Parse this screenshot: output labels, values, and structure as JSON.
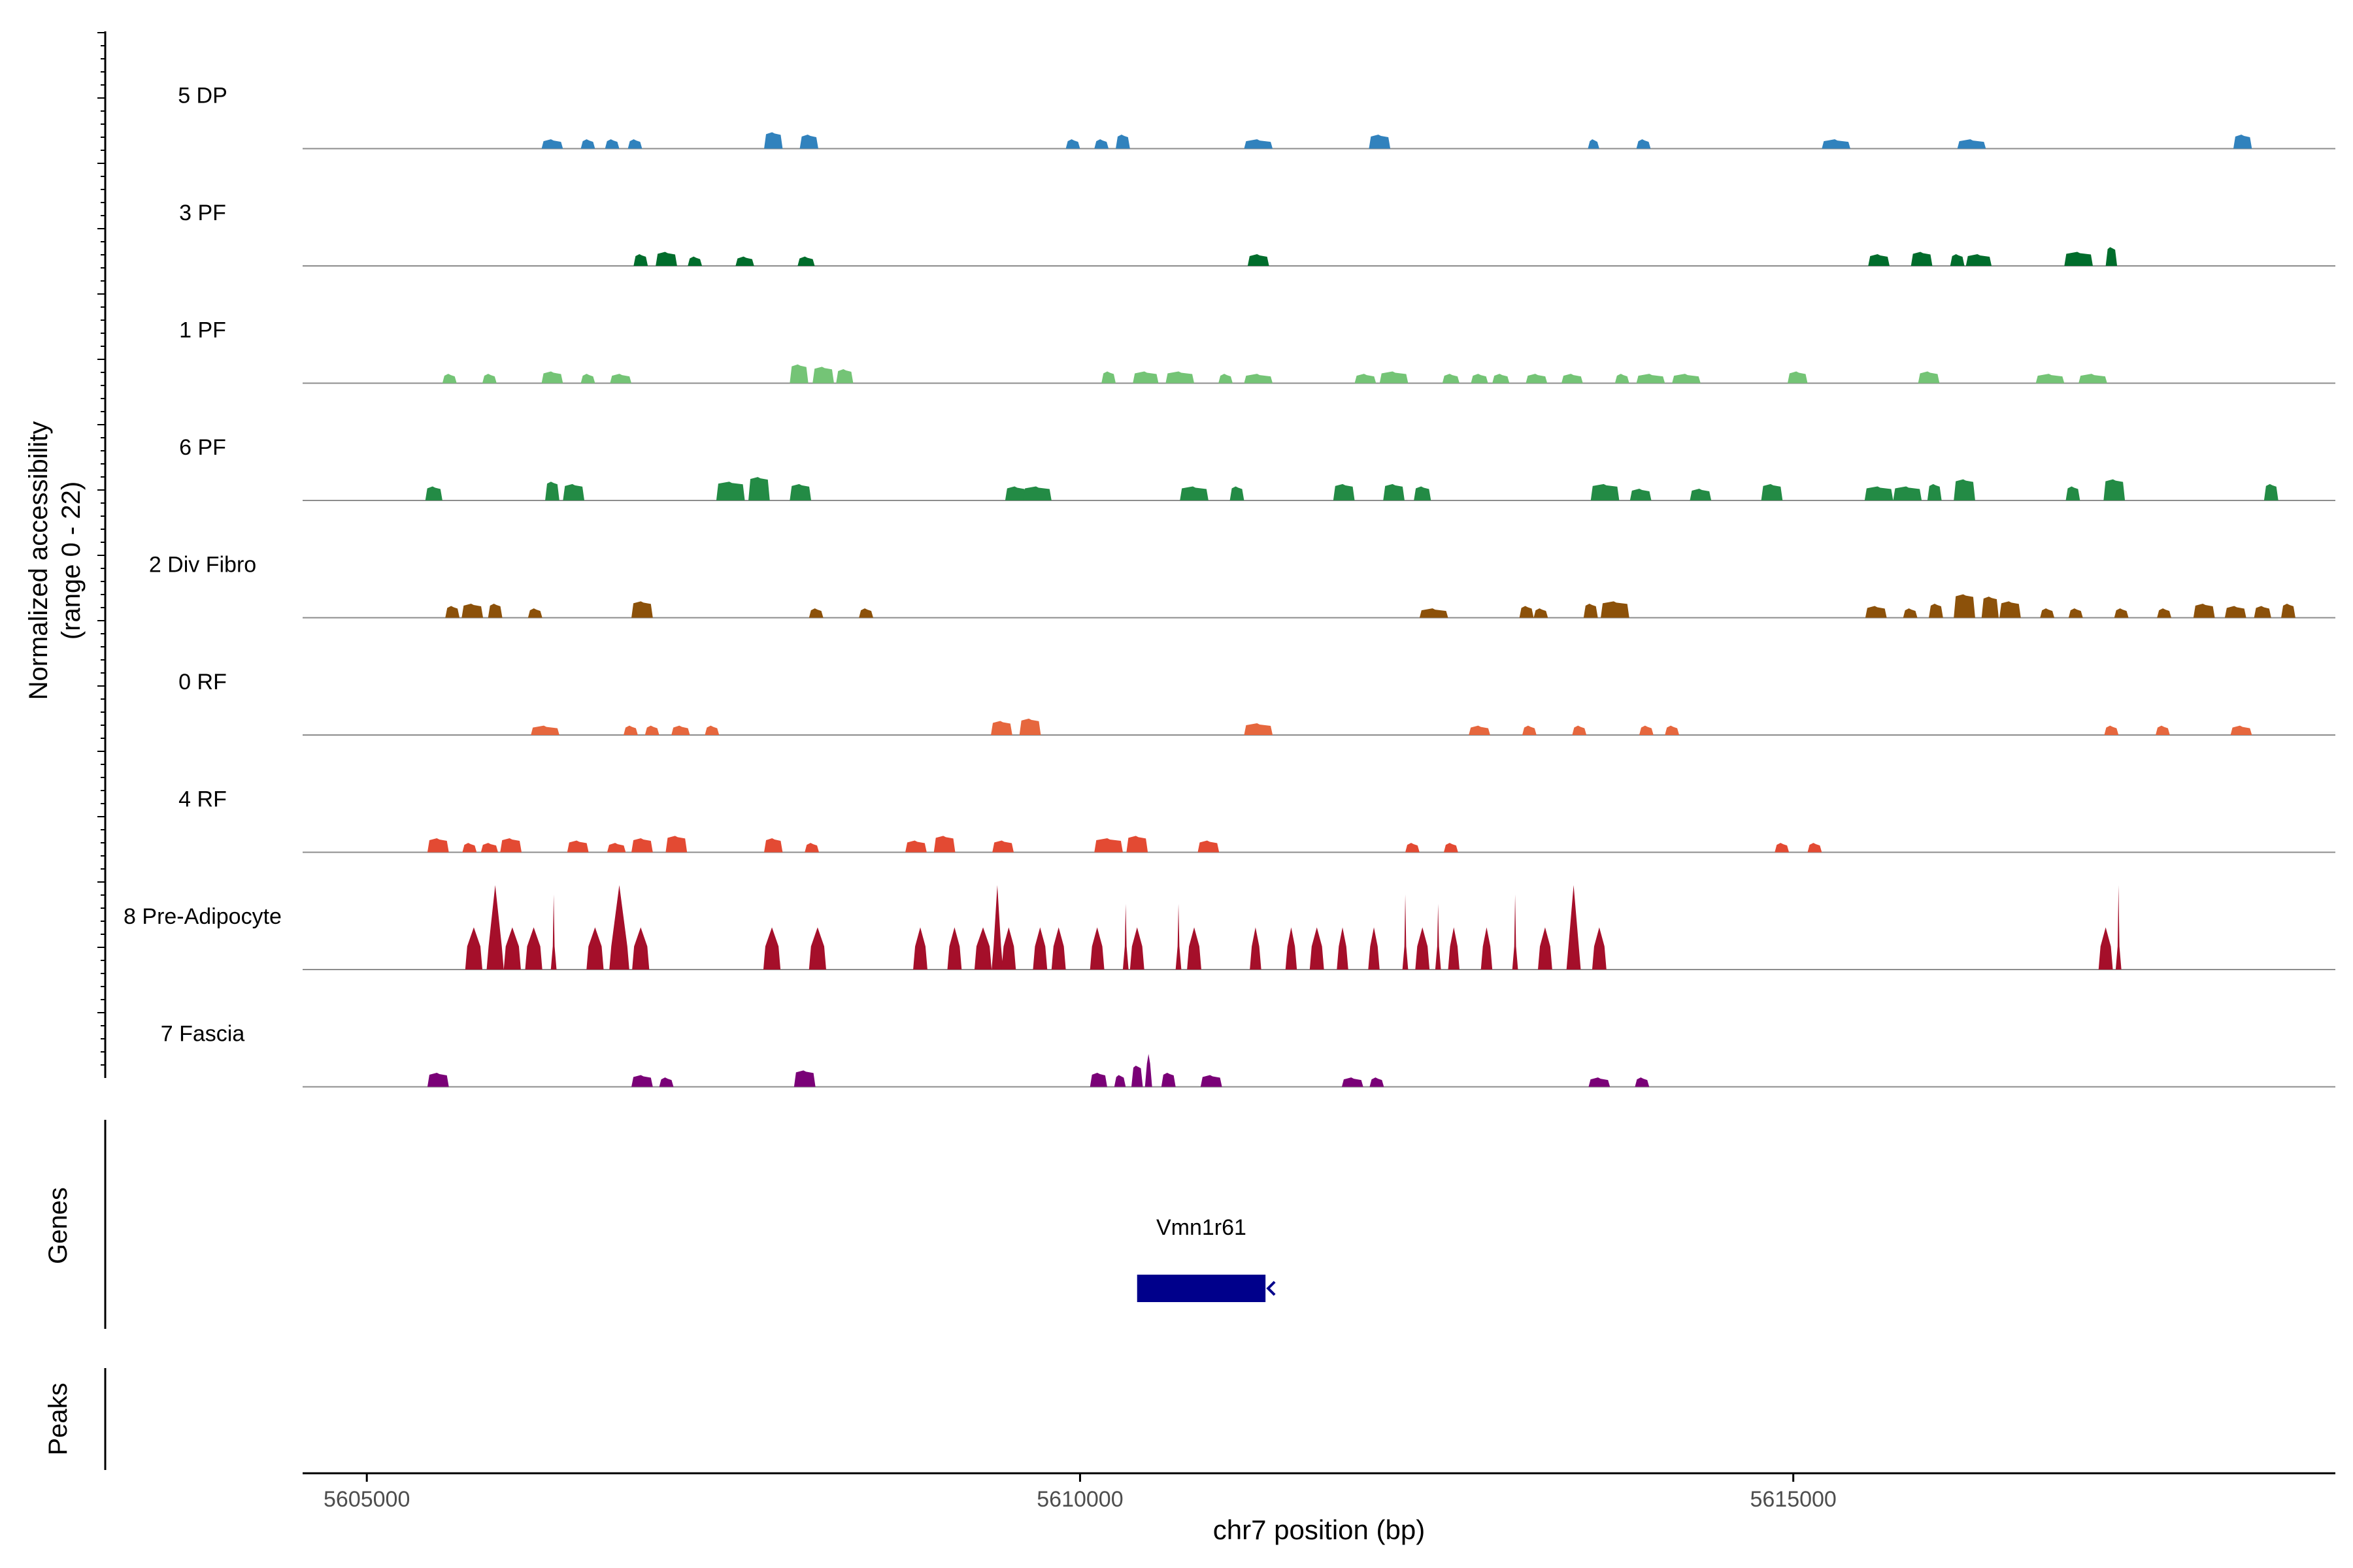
{
  "chart_data": {
    "type": "area",
    "ylabel_line1": "Normalized accessibility",
    "ylabel_line2": "(range 0 - 22)",
    "xlabel": "chr7 position (bp)",
    "xlim": [
      5604550,
      5618800
    ],
    "ylim": [
      0,
      22
    ],
    "x_ticks": [
      5605000,
      5610000,
      5615000
    ],
    "x_tick_labels": [
      "5605000",
      "5610000",
      "5615000"
    ],
    "genes_label": "Genes",
    "peaks_label": "Peaks",
    "genes": [
      {
        "name": "Vmn1r61",
        "start": 5610400,
        "end": 5611300,
        "strand": "-",
        "color": "#00008B"
      }
    ],
    "tracks": [
      {
        "name": "5 DP",
        "color": "#3182BD",
        "peaks": [
          [
            5606300,
            150,
            2
          ],
          [
            5606550,
            100,
            2
          ],
          [
            5606720,
            100,
            2
          ],
          [
            5606880,
            100,
            2
          ],
          [
            5607850,
            130,
            3.5
          ],
          [
            5608100,
            130,
            3
          ],
          [
            5609950,
            100,
            2
          ],
          [
            5610150,
            100,
            2
          ],
          [
            5610300,
            100,
            3
          ],
          [
            5611250,
            200,
            2
          ],
          [
            5612100,
            150,
            3
          ],
          [
            5613600,
            80,
            2
          ],
          [
            5613950,
            100,
            2
          ],
          [
            5615300,
            200,
            2
          ],
          [
            5616250,
            200,
            2
          ],
          [
            5618150,
            130,
            3
          ]
        ]
      },
      {
        "name": "3 PF",
        "color": "#006D2C",
        "peaks": [
          [
            5606920,
            100,
            2.5
          ],
          [
            5607100,
            150,
            3
          ],
          [
            5607300,
            100,
            2
          ],
          [
            5607650,
            130,
            2
          ],
          [
            5608080,
            120,
            2
          ],
          [
            5611250,
            150,
            2.5
          ],
          [
            5615600,
            150,
            2.5
          ],
          [
            5615900,
            150,
            3
          ],
          [
            5616150,
            100,
            2.5
          ],
          [
            5616300,
            180,
            2.5
          ],
          [
            5617000,
            200,
            3
          ],
          [
            5617230,
            80,
            4
          ]
        ]
      },
      {
        "name": "1 PF",
        "color": "#74C476",
        "peaks": [
          [
            5605580,
            100,
            2
          ],
          [
            5605860,
            100,
            2
          ],
          [
            5606300,
            150,
            2.5
          ],
          [
            5606550,
            100,
            2
          ],
          [
            5606780,
            150,
            2
          ],
          [
            5608030,
            130,
            4
          ],
          [
            5608200,
            150,
            3.5
          ],
          [
            5608350,
            120,
            3
          ],
          [
            5610200,
            100,
            2.5
          ],
          [
            5610460,
            180,
            2.5
          ],
          [
            5610700,
            200,
            2.5
          ],
          [
            5611020,
            100,
            2
          ],
          [
            5611250,
            200,
            2
          ],
          [
            5612000,
            150,
            2
          ],
          [
            5612200,
            200,
            2.5
          ],
          [
            5612600,
            120,
            2
          ],
          [
            5612800,
            120,
            2
          ],
          [
            5612950,
            120,
            2
          ],
          [
            5613200,
            150,
            2
          ],
          [
            5613450,
            150,
            2
          ],
          [
            5613800,
            100,
            2
          ],
          [
            5614000,
            200,
            2
          ],
          [
            5614250,
            200,
            2
          ],
          [
            5615030,
            140,
            2.5
          ],
          [
            5615950,
            150,
            2.5
          ],
          [
            5616800,
            200,
            2
          ],
          [
            5617100,
            200,
            2
          ]
        ]
      },
      {
        "name": "6 PF",
        "color": "#238B45",
        "peaks": [
          [
            5605470,
            120,
            3
          ],
          [
            5606300,
            100,
            4
          ],
          [
            5606450,
            150,
            3.5
          ],
          [
            5607550,
            200,
            4
          ],
          [
            5607750,
            150,
            5
          ],
          [
            5608040,
            150,
            3.5
          ],
          [
            5609550,
            150,
            3
          ],
          [
            5609700,
            200,
            3
          ],
          [
            5610800,
            200,
            3
          ],
          [
            5611100,
            100,
            3
          ],
          [
            5611850,
            150,
            3.5
          ],
          [
            5612200,
            150,
            3.5
          ],
          [
            5612400,
            120,
            3
          ],
          [
            5613680,
            200,
            3.5
          ],
          [
            5613930,
            150,
            2.5
          ],
          [
            5614350,
            150,
            2.5
          ],
          [
            5614850,
            150,
            3.5
          ],
          [
            5615600,
            200,
            3
          ],
          [
            5615800,
            200,
            3
          ],
          [
            5615990,
            100,
            3.5
          ],
          [
            5616200,
            150,
            4.5
          ],
          [
            5616960,
            100,
            3
          ],
          [
            5617250,
            150,
            4.5
          ],
          [
            5618350,
            100,
            3.5
          ]
        ]
      },
      {
        "name": "2 Div Fibro",
        "color": "#8C510A",
        "peaks": [
          [
            5605600,
            100,
            2.5
          ],
          [
            5605740,
            150,
            3
          ],
          [
            5605900,
            100,
            3
          ],
          [
            5606180,
            100,
            2
          ],
          [
            5606930,
            150,
            3.5
          ],
          [
            5608150,
            100,
            2
          ],
          [
            5608500,
            100,
            2
          ],
          [
            5612480,
            200,
            2
          ],
          [
            5613130,
            100,
            2.5
          ],
          [
            5613230,
            100,
            2
          ],
          [
            5613580,
            100,
            3
          ],
          [
            5613750,
            200,
            3.5
          ],
          [
            5615580,
            150,
            2.5
          ],
          [
            5615820,
            100,
            2
          ],
          [
            5616000,
            100,
            3
          ],
          [
            5616200,
            150,
            5
          ],
          [
            5616380,
            120,
            4.5
          ],
          [
            5616520,
            150,
            3.5
          ],
          [
            5616780,
            100,
            2
          ],
          [
            5616980,
            100,
            2
          ],
          [
            5617300,
            100,
            2
          ],
          [
            5617600,
            100,
            2
          ],
          [
            5617880,
            150,
            3
          ],
          [
            5618100,
            150,
            2.5
          ],
          [
            5618290,
            120,
            2.5
          ],
          [
            5618470,
            100,
            3
          ]
        ]
      },
      {
        "name": "0 RF",
        "color": "#E6673E",
        "peaks": [
          [
            5606250,
            200,
            2
          ],
          [
            5606850,
            100,
            2
          ],
          [
            5607000,
            100,
            2
          ],
          [
            5607200,
            130,
            2
          ],
          [
            5607420,
            100,
            2
          ],
          [
            5609450,
            150,
            3
          ],
          [
            5609650,
            150,
            3.5
          ],
          [
            5611250,
            200,
            2.5
          ],
          [
            5612800,
            150,
            2
          ],
          [
            5613150,
            100,
            2
          ],
          [
            5613500,
            100,
            2
          ],
          [
            5613970,
            100,
            2
          ],
          [
            5614150,
            100,
            2
          ],
          [
            5617230,
            100,
            2
          ],
          [
            5617590,
            100,
            2
          ],
          [
            5618140,
            150,
            2
          ]
        ]
      },
      {
        "name": "4 RF",
        "color": "#E34A33",
        "peaks": [
          [
            5605500,
            150,
            3
          ],
          [
            5605720,
            100,
            2
          ],
          [
            5605860,
            120,
            2
          ],
          [
            5606010,
            150,
            3
          ],
          [
            5606480,
            150,
            2.5
          ],
          [
            5606750,
            130,
            2
          ],
          [
            5606930,
            150,
            3
          ],
          [
            5607170,
            150,
            3.5
          ],
          [
            5607850,
            130,
            3
          ],
          [
            5608120,
            100,
            2
          ],
          [
            5608850,
            150,
            2.5
          ],
          [
            5609050,
            150,
            3.5
          ],
          [
            5609460,
            150,
            2.5
          ],
          [
            5610200,
            200,
            3
          ],
          [
            5610400,
            150,
            3.5
          ],
          [
            5610900,
            150,
            2.5
          ],
          [
            5612330,
            100,
            2
          ],
          [
            5612600,
            100,
            2
          ],
          [
            5614920,
            100,
            2
          ],
          [
            5615150,
            100,
            2
          ]
        ]
      },
      {
        "name": "8 Pre-Adipocyte",
        "color": "#A50F2A",
        "peaks": [
          [
            5605750,
            120,
            9
          ],
          [
            5605900,
            120,
            18
          ],
          [
            5606020,
            120,
            9
          ],
          [
            5606170,
            120,
            9
          ],
          [
            5606310,
            40,
            16
          ],
          [
            5606600,
            120,
            9
          ],
          [
            5606770,
            140,
            18
          ],
          [
            5606920,
            120,
            9
          ],
          [
            5607840,
            120,
            9
          ],
          [
            5608160,
            120,
            9
          ],
          [
            5608880,
            100,
            9
          ],
          [
            5609120,
            100,
            9
          ],
          [
            5609320,
            120,
            9
          ],
          [
            5609420,
            80,
            18
          ],
          [
            5609500,
            100,
            9
          ],
          [
            5609720,
            100,
            9
          ],
          [
            5609850,
            100,
            9
          ],
          [
            5610120,
            100,
            9
          ],
          [
            5610320,
            40,
            14
          ],
          [
            5610400,
            100,
            9
          ],
          [
            5610690,
            40,
            14
          ],
          [
            5610800,
            100,
            9
          ],
          [
            5611230,
            80,
            9
          ],
          [
            5611480,
            80,
            9
          ],
          [
            5611660,
            100,
            9
          ],
          [
            5611840,
            80,
            9
          ],
          [
            5612060,
            80,
            9
          ],
          [
            5612280,
            40,
            16
          ],
          [
            5612400,
            100,
            9
          ],
          [
            5612510,
            40,
            14
          ],
          [
            5612620,
            80,
            9
          ],
          [
            5612850,
            80,
            9
          ],
          [
            5613050,
            40,
            16
          ],
          [
            5613260,
            100,
            9
          ],
          [
            5613460,
            100,
            18
          ],
          [
            5613640,
            100,
            9
          ],
          [
            5617190,
            100,
            9
          ],
          [
            5617280,
            40,
            18
          ]
        ]
      },
      {
        "name": "7 Fascia",
        "color": "#7A0177",
        "peaks": [
          [
            5605500,
            150,
            3
          ],
          [
            5606930,
            150,
            2.5
          ],
          [
            5607100,
            100,
            2
          ],
          [
            5608070,
            150,
            3.5
          ],
          [
            5610130,
            120,
            3
          ],
          [
            5610280,
            80,
            2.5
          ],
          [
            5610400,
            80,
            4.5
          ],
          [
            5610480,
            50,
            7
          ],
          [
            5610620,
            100,
            3
          ],
          [
            5610920,
            150,
            2.5
          ],
          [
            5611910,
            150,
            2
          ],
          [
            5612080,
            100,
            2
          ],
          [
            5613640,
            150,
            2
          ],
          [
            5613940,
            100,
            2
          ]
        ]
      }
    ]
  }
}
